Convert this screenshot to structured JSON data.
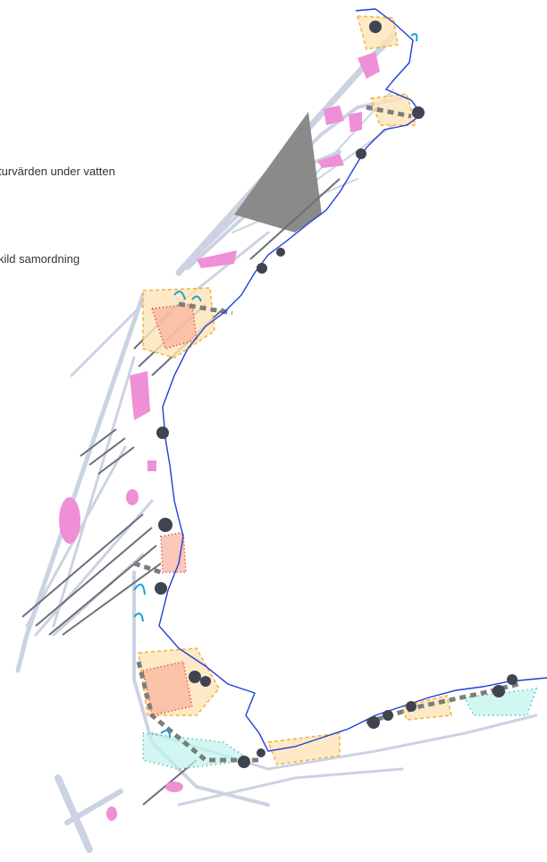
{
  "labels": [
    "turvärden under vatten",
    "kild samordning"
  ]
}
